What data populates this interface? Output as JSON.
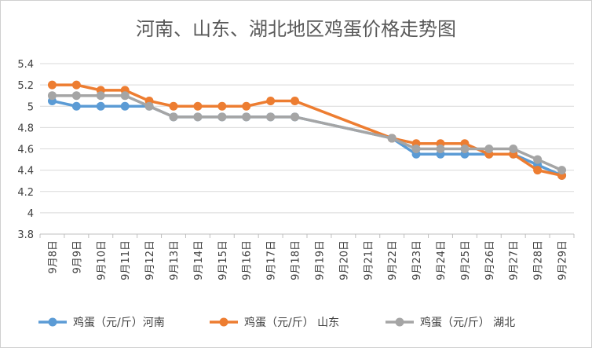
{
  "chart_data": {
    "type": "line",
    "title": "河南、山东、湖北地区鸡蛋价格走势图",
    "categories": [
      "9月8日",
      "9月9日",
      "9月10日",
      "9月11日",
      "9月12日",
      "9月13日",
      "9月14日",
      "9月15日",
      "9月16日",
      "9月17日",
      "9月18日",
      "9月19日",
      "9月20日",
      "9月21日",
      "9月22日",
      "9月23日",
      "9月24日",
      "9月25日",
      "9月26日",
      "9月27日",
      "9月28日",
      "9月29日"
    ],
    "ylim": [
      3.8,
      5.4
    ],
    "yticks": [
      "3.8",
      "4",
      "4.2",
      "4.4",
      "4.6",
      "4.8",
      "5",
      "5.2",
      "5.4"
    ],
    "grid": true,
    "legend": "bottom",
    "series": [
      {
        "name": "鸡蛋（元/斤）河南",
        "color": "#5B9BD5",
        "values": [
          5.05,
          5.0,
          5.0,
          5.0,
          5.0,
          4.9,
          4.9,
          4.9,
          4.9,
          4.9,
          4.9,
          null,
          null,
          null,
          4.7,
          4.55,
          4.55,
          4.55,
          4.55,
          4.55,
          4.45,
          4.35
        ]
      },
      {
        "name": "鸡蛋（元/斤） 山东",
        "color": "#ED7D31",
        "values": [
          5.2,
          5.2,
          5.15,
          5.15,
          5.05,
          5.0,
          5.0,
          5.0,
          5.0,
          5.05,
          5.05,
          null,
          null,
          null,
          4.7,
          4.65,
          4.65,
          4.65,
          4.55,
          4.55,
          4.4,
          4.35
        ]
      },
      {
        "name": "鸡蛋（元/斤） 湖北",
        "color": "#A5A5A5",
        "values": [
          5.1,
          5.1,
          5.1,
          5.1,
          5.0,
          4.9,
          4.9,
          4.9,
          4.9,
          4.9,
          4.9,
          null,
          null,
          null,
          4.7,
          4.6,
          4.6,
          4.6,
          4.6,
          4.6,
          4.5,
          4.4
        ]
      }
    ]
  }
}
